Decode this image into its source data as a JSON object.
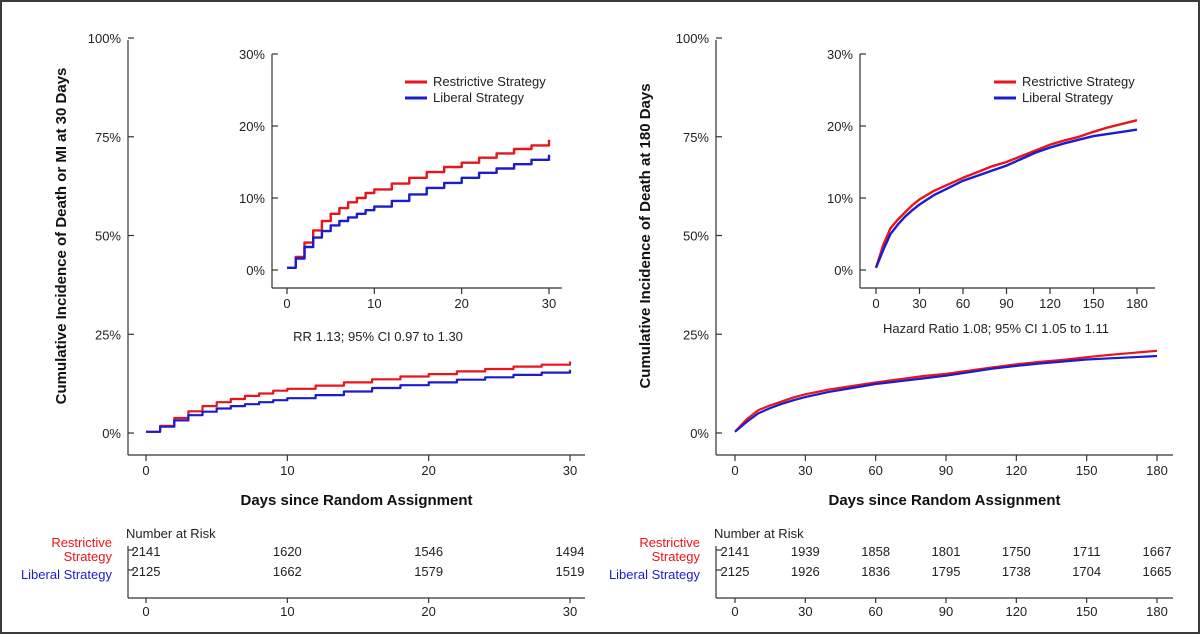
{
  "colors": {
    "restrictive": "#e8141b",
    "liberal": "#1c1ccf",
    "axis": "#333333",
    "frame": "#3a3a3a"
  },
  "chart_data": [
    {
      "type": "line",
      "name": "death-or-mi-30-days",
      "ylabel": "Cumulative Incidence of Death or MI at 30 Days",
      "xlabel": "Days since Random Assignment",
      "xlim": [
        0,
        30
      ],
      "ylim": [
        0,
        100
      ],
      "xticks": [
        0,
        10,
        20,
        30
      ],
      "xtick_labels": [
        "0",
        "10",
        "20",
        "30"
      ],
      "yticks": [
        0,
        25,
        50,
        75,
        100
      ],
      "ytick_labels": [
        "0%",
        "25%",
        "50%",
        "75%",
        "100%"
      ],
      "step": true,
      "series": [
        {
          "name": "Restrictive Strategy",
          "color": "#e8141b",
          "x": [
            0,
            1,
            2,
            3,
            4,
            5,
            6,
            7,
            8,
            9,
            10,
            12,
            14,
            16,
            18,
            20,
            22,
            24,
            26,
            28,
            30
          ],
          "y": [
            0.3,
            1.8,
            3.8,
            5.5,
            6.8,
            7.8,
            8.6,
            9.4,
            10.0,
            10.7,
            11.2,
            12.0,
            12.8,
            13.6,
            14.3,
            14.9,
            15.6,
            16.2,
            16.8,
            17.3,
            18.1
          ]
        },
        {
          "name": "Liberal Strategy",
          "color": "#1c1ccf",
          "x": [
            0,
            1,
            2,
            3,
            4,
            5,
            6,
            7,
            8,
            9,
            10,
            12,
            14,
            16,
            18,
            20,
            22,
            24,
            26,
            28,
            30
          ],
          "y": [
            0.3,
            1.6,
            3.2,
            4.5,
            5.4,
            6.2,
            6.8,
            7.3,
            7.8,
            8.3,
            8.8,
            9.6,
            10.5,
            11.4,
            12.1,
            12.8,
            13.5,
            14.1,
            14.7,
            15.3,
            16.0
          ]
        }
      ],
      "inset": {
        "xlim": [
          0,
          30
        ],
        "ylim": [
          0,
          30
        ],
        "xticks": [
          0,
          10,
          20,
          30
        ],
        "xtick_labels": [
          "0",
          "10",
          "20",
          "30"
        ],
        "yticks": [
          0,
          10,
          20,
          30
        ],
        "ytick_labels": [
          "0%",
          "10%",
          "20%",
          "30%"
        ]
      },
      "legend": [
        "Restrictive Strategy",
        "Liberal Strategy"
      ],
      "legend_position": "inset-top-right",
      "annotation": "RR 1.13; 95% CI 0.97 to 1.30",
      "risk_table": {
        "title": "Number at Risk",
        "times": [
          0,
          10,
          20,
          30
        ],
        "time_labels": [
          "0",
          "10",
          "20",
          "30"
        ],
        "rows": [
          {
            "label_line1": "Restrictive",
            "label_line2": "Strategy",
            "values": [
              "2141",
              "1620",
              "1546",
              "1494"
            ]
          },
          {
            "label_line1": "Liberal Strategy",
            "values": [
              "2125",
              "1662",
              "1579",
              "1519"
            ]
          }
        ]
      }
    },
    {
      "type": "line",
      "name": "death-180-days",
      "ylabel": "Cumulative Incidence of Death at 180 Days",
      "xlabel": "Days since Random Assignment",
      "xlim": [
        0,
        180
      ],
      "ylim": [
        0,
        100
      ],
      "xticks": [
        0,
        30,
        60,
        90,
        120,
        150,
        180
      ],
      "xtick_labels": [
        "0",
        "30",
        "60",
        "90",
        "120",
        "150",
        "180"
      ],
      "yticks": [
        0,
        25,
        50,
        75,
        100
      ],
      "ytick_labels": [
        "0%",
        "25%",
        "50%",
        "75%",
        "100%"
      ],
      "step": false,
      "series": [
        {
          "name": "Restrictive Strategy",
          "color": "#e8141b",
          "x": [
            0,
            5,
            10,
            15,
            20,
            25,
            30,
            40,
            50,
            60,
            70,
            80,
            90,
            100,
            110,
            120,
            130,
            140,
            150,
            160,
            170,
            180
          ],
          "y": [
            0.3,
            3.5,
            5.8,
            7.0,
            8.0,
            9.0,
            9.8,
            11.0,
            11.9,
            12.8,
            13.6,
            14.4,
            15.0,
            15.8,
            16.6,
            17.4,
            18.0,
            18.5,
            19.2,
            19.8,
            20.3,
            20.8
          ]
        },
        {
          "name": "Liberal Strategy",
          "color": "#1c1ccf",
          "x": [
            0,
            5,
            10,
            15,
            20,
            25,
            30,
            40,
            50,
            60,
            70,
            80,
            90,
            100,
            110,
            120,
            130,
            140,
            150,
            160,
            170,
            180
          ],
          "y": [
            0.3,
            2.8,
            5.0,
            6.3,
            7.4,
            8.3,
            9.1,
            10.4,
            11.4,
            12.4,
            13.1,
            13.8,
            14.5,
            15.4,
            16.3,
            17.0,
            17.6,
            18.1,
            18.6,
            18.9,
            19.2,
            19.5
          ]
        }
      ],
      "inset": {
        "xlim": [
          0,
          180
        ],
        "ylim": [
          0,
          30
        ],
        "xticks": [
          0,
          30,
          60,
          90,
          120,
          150,
          180
        ],
        "xtick_labels": [
          "0",
          "30",
          "60",
          "90",
          "120",
          "150",
          "180"
        ],
        "yticks": [
          0,
          10,
          20,
          30
        ],
        "ytick_labels": [
          "0%",
          "10%",
          "20%",
          "30%"
        ]
      },
      "legend": [
        "Restrictive Strategy",
        "Liberal Strategy"
      ],
      "legend_position": "inset-top-right",
      "annotation": "Hazard Ratio 1.08; 95% CI 1.05 to 1.11",
      "risk_table": {
        "title": "Number at Risk",
        "times": [
          0,
          30,
          60,
          90,
          120,
          150,
          180
        ],
        "time_labels": [
          "0",
          "30",
          "60",
          "90",
          "120",
          "150",
          "180"
        ],
        "rows": [
          {
            "label_line1": "Restrictive",
            "label_line2": "Strategy",
            "values": [
              "2141",
              "1939",
              "1858",
              "1801",
              "1750",
              "1711",
              "1667"
            ]
          },
          {
            "label_line1": "Liberal Strategy",
            "values": [
              "2125",
              "1926",
              "1836",
              "1795",
              "1738",
              "1704",
              "1665"
            ]
          }
        ]
      }
    }
  ]
}
